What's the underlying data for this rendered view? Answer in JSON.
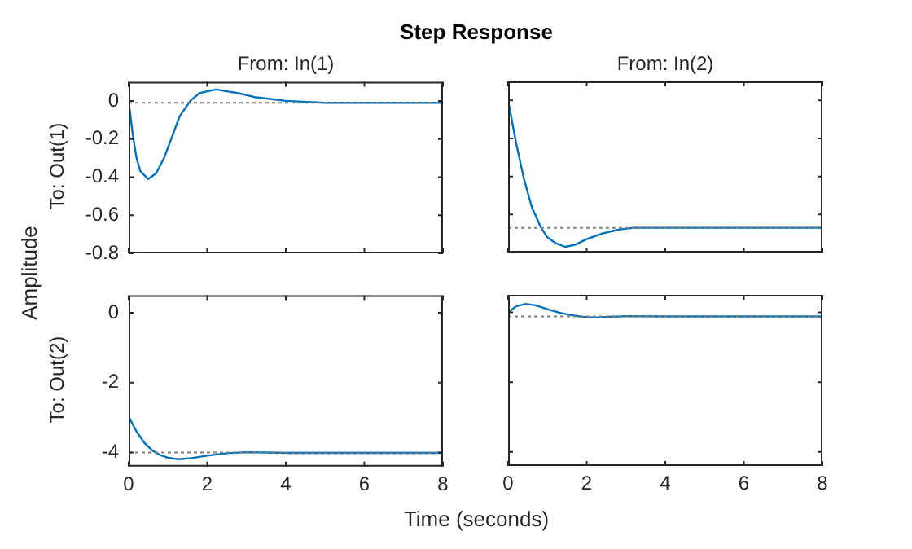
{
  "chart_data": [
    {
      "type": "line",
      "title": "Step Response",
      "subtitle": "From: In(1)",
      "ylabel": "To: Out(1)",
      "annotations": [
        "Amplitude"
      ],
      "xlim": [
        0,
        8
      ],
      "xticks": [
        0,
        2,
        4,
        6,
        8
      ],
      "ylim": [
        -0.8,
        0.1
      ],
      "yticks": [
        -0.8,
        -0.6,
        -0.4,
        -0.2,
        0
      ],
      "tick_labels": "y",
      "grid": false,
      "legend": false,
      "marker": "none",
      "line_style": "solid",
      "ref_lines": [
        {
          "axis": "y",
          "value": -0.01,
          "color": "#808080",
          "line_style": "dotted"
        }
      ],
      "series": [
        {
          "color": "#0072bd",
          "x": [
            0,
            0.1,
            0.2,
            0.3,
            0.5,
            0.7,
            0.9,
            1.1,
            1.3,
            1.57,
            1.8,
            2.0,
            2.23,
            2.5,
            2.8,
            3.2,
            3.6,
            4,
            5,
            6,
            7,
            8
          ],
          "values": [
            0,
            -0.17,
            -0.3,
            -0.37,
            -0.41,
            -0.38,
            -0.3,
            -0.19,
            -0.08,
            0,
            0.04,
            0.05,
            0.06,
            0.05,
            0.04,
            0.02,
            0.01,
            0,
            -0.01,
            -0.01,
            -0.01,
            -0.01
          ]
        }
      ]
    },
    {
      "type": "line",
      "subtitle": "From: In(2)",
      "xlim": [
        0,
        8
      ],
      "xticks": [
        0,
        2,
        4,
        6,
        8
      ],
      "ylim": [
        -0.8,
        0.1
      ],
      "yticks": [
        -0.8,
        -0.6,
        -0.4,
        -0.2,
        0
      ],
      "tick_labels": false,
      "grid": false,
      "legend": false,
      "marker": "none",
      "line_style": "solid",
      "ref_lines": [
        {
          "axis": "y",
          "value": -0.67,
          "color": "#808080",
          "line_style": "dotted"
        }
      ],
      "series": [
        {
          "color": "#0072bd",
          "x": [
            0,
            0.2,
            0.4,
            0.6,
            0.84,
            1.0,
            1.2,
            1.45,
            1.7,
            2.0,
            2.4,
            2.8,
            3.2,
            4,
            5,
            6,
            7,
            8
          ],
          "values": [
            0,
            -0.22,
            -0.41,
            -0.56,
            -0.67,
            -0.72,
            -0.75,
            -0.77,
            -0.76,
            -0.73,
            -0.7,
            -0.68,
            -0.67,
            -0.67,
            -0.67,
            -0.67,
            -0.67,
            -0.67
          ]
        }
      ]
    },
    {
      "type": "line",
      "ylabel": "To: Out(2)",
      "xlabel": "Time (seconds)",
      "xlim": [
        0,
        8
      ],
      "xticks": [
        0,
        2,
        4,
        6,
        8
      ],
      "ylim": [
        -4.4,
        0.5
      ],
      "yticks": [
        -4,
        -2,
        0
      ],
      "grid": false,
      "legend": false,
      "marker": "none",
      "line_style": "solid",
      "ref_lines": [
        {
          "axis": "y",
          "value": -4.0,
          "color": "#808080",
          "line_style": "dotted"
        }
      ],
      "series": [
        {
          "color": "#0072bd",
          "x": [
            0,
            0.2,
            0.4,
            0.6,
            0.8,
            1.0,
            1.27,
            1.6,
            2.0,
            2.5,
            3.0,
            3.5,
            4,
            5,
            6,
            7,
            8
          ],
          "values": [
            -2.97,
            -3.4,
            -3.72,
            -3.94,
            -4.07,
            -4.15,
            -4.19,
            -4.16,
            -4.09,
            -4.02,
            -3.99,
            -4.0,
            -4.01,
            -4.01,
            -4.01,
            -4.01,
            -4.01
          ]
        }
      ]
    },
    {
      "type": "line",
      "xlim": [
        0,
        8
      ],
      "xticks": [
        0,
        2,
        4,
        6,
        8
      ],
      "ylim": [
        -4.4,
        0.5
      ],
      "yticks": [
        -4,
        -2,
        0
      ],
      "tick_labels": "x",
      "grid": false,
      "legend": false,
      "marker": "none",
      "line_style": "solid",
      "ref_lines": [
        {
          "axis": "y",
          "value": -0.12,
          "color": "#808080",
          "line_style": "dotted"
        }
      ],
      "series": [
        {
          "color": "#0072bd",
          "x": [
            0,
            0.2,
            0.45,
            0.7,
            1.0,
            1.3,
            1.6,
            1.9,
            2.2,
            2.6,
            3,
            4,
            5,
            6,
            7,
            8
          ],
          "values": [
            0,
            0.17,
            0.24,
            0.2,
            0.09,
            -0.01,
            -0.08,
            -0.13,
            -0.15,
            -0.13,
            -0.11,
            -0.12,
            -0.12,
            -0.12,
            -0.12,
            -0.12
          ]
        }
      ]
    }
  ]
}
